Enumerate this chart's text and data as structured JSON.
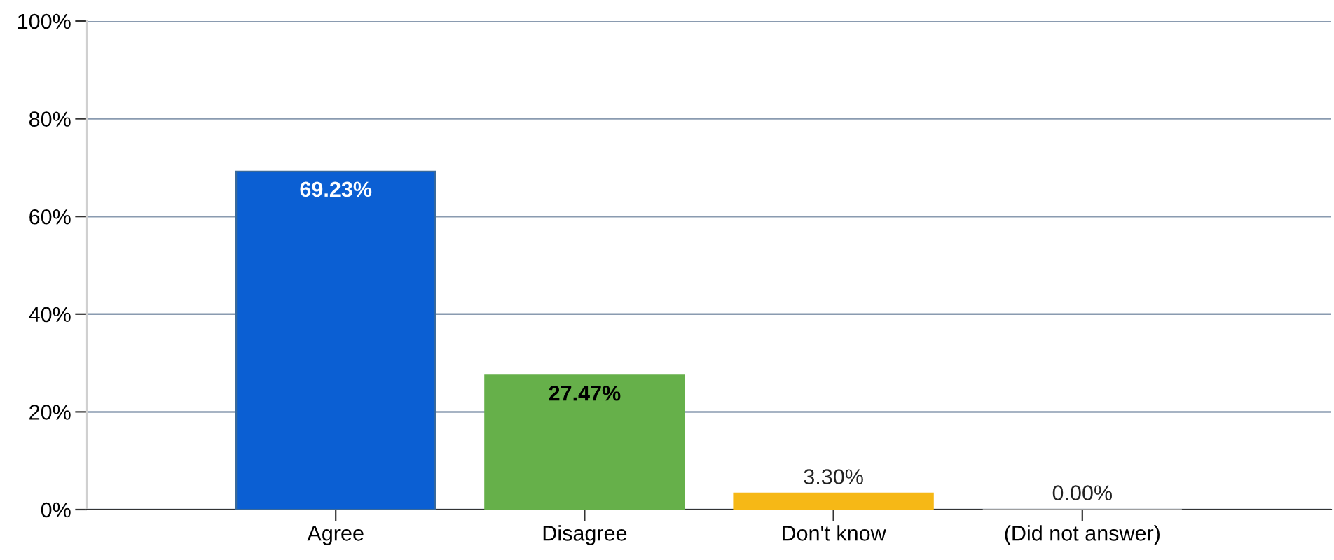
{
  "chart_data": {
    "type": "bar",
    "categories": [
      "Agree",
      "Disagree",
      "Don't know",
      "(Did not answer)"
    ],
    "values": [
      69.23,
      27.47,
      3.3,
      0.0
    ],
    "colors": [
      "#0b5fd3",
      "#66b04a",
      "#f6b816",
      "#9e9e9e"
    ],
    "value_labels": [
      "69.23%",
      "27.47%",
      "3.30%",
      "0.00%"
    ],
    "ylim": [
      0,
      100
    ],
    "yticks": [
      {
        "value": 0,
        "label": "0%"
      },
      {
        "value": 20,
        "label": "20%"
      },
      {
        "value": 40,
        "label": "40%"
      },
      {
        "value": 60,
        "label": "60%"
      },
      {
        "value": 80,
        "label": "80%"
      },
      {
        "value": 100,
        "label": "100%"
      }
    ],
    "grid": "y",
    "legend": false
  }
}
